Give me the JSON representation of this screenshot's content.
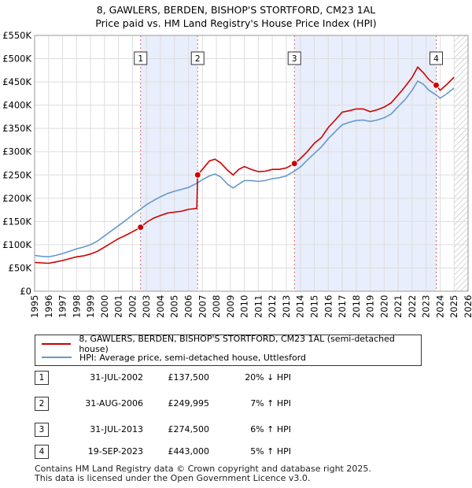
{
  "title_line1": "8, GAWLERS, BERDEN, BISHOP'S STORTFORD, CM23 1AL",
  "title_line2": "Price paid vs. HM Land Registry's House Price Index (HPI)",
  "chart_data": {
    "type": "line",
    "x_range": [
      1995,
      2026
    ],
    "ylim": [
      0,
      550000
    ],
    "y_ticks": [
      {
        "value": 0,
        "label": "£0"
      },
      {
        "value": 50000,
        "label": "£50K"
      },
      {
        "value": 100000,
        "label": "£100K"
      },
      {
        "value": 150000,
        "label": "£150K"
      },
      {
        "value": 200000,
        "label": "£200K"
      },
      {
        "value": 250000,
        "label": "£250K"
      },
      {
        "value": 300000,
        "label": "£300K"
      },
      {
        "value": 350000,
        "label": "£350K"
      },
      {
        "value": 400000,
        "label": "£400K"
      },
      {
        "value": 450000,
        "label": "£450K"
      },
      {
        "value": 500000,
        "label": "£500K"
      },
      {
        "value": 550000,
        "label": "£550K"
      }
    ],
    "x_ticks": [
      "1995",
      "1996",
      "1997",
      "1998",
      "1999",
      "2000",
      "2001",
      "2002",
      "2003",
      "2004",
      "2005",
      "2006",
      "2007",
      "2008",
      "2009",
      "2010",
      "2011",
      "2012",
      "2013",
      "2014",
      "2015",
      "2016",
      "2017",
      "2018",
      "2019",
      "2020",
      "2021",
      "2022",
      "2023",
      "2024",
      "2025",
      "2026"
    ],
    "future_hatch_from": 2025.0,
    "ownership_spans": [
      [
        2002.58,
        2006.66
      ],
      [
        2013.58,
        2023.72
      ]
    ],
    "series": [
      {
        "name": "8, GAWLERS, BERDEN, BISHOP'S STORTFORD, CM23 1AL (semi-detached house)",
        "color": "#cc0000",
        "points": [
          [
            1995.0,
            62000
          ],
          [
            1995.5,
            61000
          ],
          [
            1996.0,
            60000
          ],
          [
            1996.5,
            63000
          ],
          [
            1997.0,
            66000
          ],
          [
            1997.5,
            70000
          ],
          [
            1998.0,
            74000
          ],
          [
            1998.5,
            76000
          ],
          [
            1999.0,
            80000
          ],
          [
            1999.5,
            86000
          ],
          [
            2000.0,
            95000
          ],
          [
            2000.5,
            104000
          ],
          [
            2001.0,
            113000
          ],
          [
            2001.5,
            120000
          ],
          [
            2002.0,
            128000
          ],
          [
            2002.58,
            137500
          ],
          [
            2003.0,
            148000
          ],
          [
            2003.5,
            157000
          ],
          [
            2004.0,
            163000
          ],
          [
            2004.5,
            168000
          ],
          [
            2005.0,
            170000
          ],
          [
            2005.5,
            172000
          ],
          [
            2006.0,
            176000
          ],
          [
            2006.6,
            178000
          ],
          [
            2006.66,
            249995
          ],
          [
            2007.0,
            262000
          ],
          [
            2007.5,
            280000
          ],
          [
            2007.9,
            284000
          ],
          [
            2008.3,
            276000
          ],
          [
            2008.8,
            260000
          ],
          [
            2009.2,
            250000
          ],
          [
            2009.6,
            262000
          ],
          [
            2010.0,
            268000
          ],
          [
            2010.5,
            262000
          ],
          [
            2011.0,
            257000
          ],
          [
            2011.5,
            258000
          ],
          [
            2012.0,
            262000
          ],
          [
            2012.5,
            262000
          ],
          [
            2013.0,
            265000
          ],
          [
            2013.58,
            274500
          ],
          [
            2014.0,
            285000
          ],
          [
            2014.5,
            300000
          ],
          [
            2015.0,
            318000
          ],
          [
            2015.5,
            330000
          ],
          [
            2016.0,
            352000
          ],
          [
            2016.5,
            368000
          ],
          [
            2017.0,
            385000
          ],
          [
            2017.5,
            388000
          ],
          [
            2018.0,
            392000
          ],
          [
            2018.5,
            392000
          ],
          [
            2019.0,
            386000
          ],
          [
            2019.5,
            390000
          ],
          [
            2020.0,
            396000
          ],
          [
            2020.5,
            405000
          ],
          [
            2021.0,
            422000
          ],
          [
            2021.5,
            440000
          ],
          [
            2022.0,
            460000
          ],
          [
            2022.4,
            482000
          ],
          [
            2022.8,
            470000
          ],
          [
            2023.2,
            455000
          ],
          [
            2023.72,
            443000
          ],
          [
            2024.0,
            432000
          ],
          [
            2024.5,
            445000
          ],
          [
            2025.0,
            460000
          ]
        ]
      },
      {
        "name": "HPI: Average price, semi-detached house, Uttlesford",
        "color": "#6699cc",
        "points": [
          [
            1995.0,
            77000
          ],
          [
            1995.5,
            75000
          ],
          [
            1996.0,
            74000
          ],
          [
            1996.5,
            77000
          ],
          [
            1997.0,
            81000
          ],
          [
            1997.5,
            86000
          ],
          [
            1998.0,
            91000
          ],
          [
            1998.5,
            95000
          ],
          [
            1999.0,
            100000
          ],
          [
            1999.5,
            108000
          ],
          [
            2000.0,
            119000
          ],
          [
            2000.5,
            130000
          ],
          [
            2001.0,
            141000
          ],
          [
            2001.5,
            152000
          ],
          [
            2002.0,
            164000
          ],
          [
            2002.5,
            175000
          ],
          [
            2003.0,
            186000
          ],
          [
            2003.5,
            195000
          ],
          [
            2004.0,
            203000
          ],
          [
            2004.5,
            210000
          ],
          [
            2005.0,
            215000
          ],
          [
            2005.5,
            219000
          ],
          [
            2006.0,
            223000
          ],
          [
            2006.66,
            233000
          ],
          [
            2007.0,
            240000
          ],
          [
            2007.5,
            248000
          ],
          [
            2007.9,
            252000
          ],
          [
            2008.3,
            246000
          ],
          [
            2008.8,
            230000
          ],
          [
            2009.2,
            222000
          ],
          [
            2009.6,
            230000
          ],
          [
            2010.0,
            238000
          ],
          [
            2010.5,
            238000
          ],
          [
            2011.0,
            236000
          ],
          [
            2011.5,
            238000
          ],
          [
            2012.0,
            242000
          ],
          [
            2012.5,
            244000
          ],
          [
            2013.0,
            248000
          ],
          [
            2013.58,
            258000
          ],
          [
            2014.0,
            267000
          ],
          [
            2014.5,
            282000
          ],
          [
            2015.0,
            296000
          ],
          [
            2015.5,
            310000
          ],
          [
            2016.0,
            328000
          ],
          [
            2016.5,
            343000
          ],
          [
            2017.0,
            358000
          ],
          [
            2017.5,
            363000
          ],
          [
            2018.0,
            367000
          ],
          [
            2018.5,
            368000
          ],
          [
            2019.0,
            365000
          ],
          [
            2019.5,
            368000
          ],
          [
            2020.0,
            373000
          ],
          [
            2020.5,
            381000
          ],
          [
            2021.0,
            397000
          ],
          [
            2021.5,
            412000
          ],
          [
            2022.0,
            432000
          ],
          [
            2022.4,
            452000
          ],
          [
            2022.8,
            445000
          ],
          [
            2023.2,
            432000
          ],
          [
            2023.72,
            422000
          ],
          [
            2024.0,
            415000
          ],
          [
            2024.5,
            425000
          ],
          [
            2025.0,
            437000
          ]
        ]
      }
    ],
    "transactions": [
      {
        "label": "1",
        "x": 2002.58,
        "price": 137500
      },
      {
        "label": "2",
        "x": 2006.66,
        "price": 249995
      },
      {
        "label": "3",
        "x": 2013.58,
        "price": 274500
      },
      {
        "label": "4",
        "x": 2023.72,
        "price": 443000
      }
    ]
  },
  "legend": {
    "property_label": "8, GAWLERS, BERDEN, BISHOP'S STORTFORD, CM23 1AL (semi-detached house)",
    "hpi_label": "HPI: Average price, semi-detached house, Uttlesford",
    "property_color": "#cc0000",
    "hpi_color": "#6699cc"
  },
  "transactions_table": [
    {
      "num": "1",
      "date": "31-JUL-2002",
      "price": "£137,500",
      "hpi": "20% ↓ HPI"
    },
    {
      "num": "2",
      "date": "31-AUG-2006",
      "price": "£249,995",
      "hpi": "7% ↑ HPI"
    },
    {
      "num": "3",
      "date": "31-JUL-2013",
      "price": "£274,500",
      "hpi": "6% ↑ HPI"
    },
    {
      "num": "4",
      "date": "19-SEP-2023",
      "price": "£443,000",
      "hpi": "5% ↑ HPI"
    }
  ],
  "footer_line1": "Contains HM Land Registry data © Crown copyright and database right 2025.",
  "footer_line2": "This data is licensed under the Open Government Licence v3.0."
}
